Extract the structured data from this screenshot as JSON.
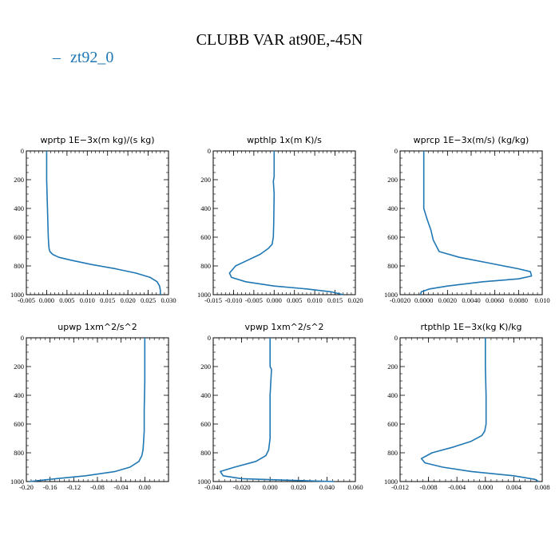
{
  "header": {
    "title": "CLUBB VAR at90E,-45N"
  },
  "legend": {
    "label": "zt92_0",
    "marker": "–",
    "color": "#1f77b4"
  },
  "chart_data": [
    {
      "type": "line",
      "title": "wprtp  1E−3x(m kg)/(s kg)",
      "xlim": [
        -0.005,
        0.03
      ],
      "ylim": [
        1000,
        0
      ],
      "xticks": [
        -0.005,
        0.0,
        0.005,
        0.01,
        0.015,
        0.02,
        0.025,
        0.03
      ],
      "xtick_labels": [
        "-0.005",
        "0.000",
        "0.005",
        "0.010",
        "0.015",
        "0.020",
        "0.025",
        "0.030"
      ],
      "yticks": [
        0,
        200,
        400,
        600,
        800,
        1000
      ],
      "ytick_labels": [
        "0",
        "200",
        "400",
        "600",
        "800",
        "1000"
      ],
      "series": [
        {
          "name": "zt92_0",
          "color": "#1f77b4",
          "x": [
            0.0,
            0.0,
            0.0002,
            0.0003,
            0.0004,
            0.0005,
            0.0006,
            0.0008,
            0.0015,
            0.003,
            0.006,
            0.011,
            0.017,
            0.022,
            0.0255,
            0.0272,
            0.0278,
            0.028,
            0.028
          ],
          "y": [
            0,
            200,
            400,
            500,
            600,
            650,
            680,
            700,
            720,
            740,
            760,
            790,
            820,
            850,
            880,
            910,
            940,
            970,
            1000
          ]
        }
      ]
    },
    {
      "type": "line",
      "title": "wpthlp  1x(m K)/s",
      "xlim": [
        -0.015,
        0.02
      ],
      "ylim": [
        1000,
        0
      ],
      "xticks": [
        -0.015,
        -0.01,
        -0.005,
        0.0,
        0.005,
        0.01,
        0.015,
        0.02
      ],
      "xtick_labels": [
        "-0.015",
        "-0.010",
        "-0.005",
        "0.000",
        "0.005",
        "0.010",
        "0.015",
        "0.020"
      ],
      "yticks": [
        0,
        200,
        400,
        600,
        800,
        1000
      ],
      "ytick_labels": [
        "0",
        "200",
        "400",
        "600",
        "800",
        "1000"
      ],
      "series": [
        {
          "name": "zt92_0",
          "color": "#1f77b4",
          "x": [
            0.0,
            0.0,
            -0.0002,
            0.0,
            -0.0001,
            -0.0002,
            -0.0005,
            -0.0015,
            -0.0035,
            -0.0065,
            -0.0095,
            -0.011,
            -0.0105,
            -0.007,
            0.0,
            0.008,
            0.014,
            0.017
          ],
          "y": [
            0,
            180,
            210,
            300,
            500,
            600,
            650,
            680,
            720,
            760,
            800,
            850,
            880,
            910,
            940,
            960,
            980,
            1000
          ]
        }
      ]
    },
    {
      "type": "line",
      "title": "wprcp  1E−3x(m/s) (kg/kg)",
      "xlim": [
        -0.002,
        0.01
      ],
      "ylim": [
        1000,
        0
      ],
      "xticks": [
        -0.002,
        0.0,
        0.002,
        0.004,
        0.006,
        0.008,
        0.01
      ],
      "xtick_labels": [
        "-0.0020",
        "0.0000",
        "0.0020",
        "0.0040",
        "0.0060",
        "0.0080",
        "0.010"
      ],
      "yticks": [
        0,
        200,
        400,
        600,
        800,
        1000
      ],
      "ytick_labels": [
        "0",
        "200",
        "400",
        "600",
        "800",
        "1000"
      ],
      "series": [
        {
          "name": "zt92_0",
          "color": "#1f77b4",
          "x": [
            0.0,
            0.0,
            0.0,
            0.0003,
            0.0006,
            0.0008,
            0.0013,
            0.003,
            0.0055,
            0.008,
            0.009,
            0.0091,
            0.008,
            0.005,
            0.002,
            0.0005,
            -0.0002,
            -0.0003
          ],
          "y": [
            0,
            200,
            400,
            480,
            550,
            620,
            700,
            740,
            780,
            820,
            840,
            870,
            890,
            910,
            940,
            960,
            980,
            1000
          ]
        }
      ]
    },
    {
      "type": "line",
      "title": "upwp  1xm^2/s^2",
      "xlim": [
        -0.2,
        0.04
      ],
      "ylim": [
        1000,
        0
      ],
      "xticks": [
        -0.2,
        -0.16,
        -0.12,
        -0.08,
        -0.04,
        0.0
      ],
      "xtick_labels": [
        "-0.20",
        "-0.16",
        "-0.12",
        "-0.08",
        "-0.04",
        "0.00"
      ],
      "yticks": [
        0,
        200,
        400,
        600,
        800,
        1000
      ],
      "ytick_labels": [
        "0",
        "200",
        "400",
        "600",
        "800",
        "1000"
      ],
      "series": [
        {
          "name": "zt92_0",
          "color": "#1f77b4",
          "x": [
            0.0,
            0.0,
            -0.001,
            -0.001,
            -0.002,
            -0.003,
            -0.005,
            -0.01,
            -0.025,
            -0.05,
            -0.1,
            -0.15,
            -0.195
          ],
          "y": [
            0,
            300,
            500,
            650,
            720,
            780,
            820,
            860,
            900,
            930,
            960,
            980,
            1000
          ]
        }
      ]
    },
    {
      "type": "line",
      "title": "vpwp  1xm^2/s^2",
      "xlim": [
        -0.04,
        0.06
      ],
      "ylim": [
        1000,
        0
      ],
      "xticks": [
        -0.04,
        -0.02,
        0.0,
        0.02,
        0.04,
        0.06
      ],
      "xtick_labels": [
        "-0.040",
        "-0.020",
        "0.000",
        "0.020",
        "0.040",
        "0.060"
      ],
      "yticks": [
        0,
        200,
        400,
        600,
        800,
        1000
      ],
      "ytick_labels": [
        "0",
        "200",
        "400",
        "600",
        "800",
        "1000"
      ],
      "series": [
        {
          "name": "zt92_0",
          "color": "#1f77b4",
          "x": [
            0.0,
            0.0,
            0.001,
            0.0,
            0.0,
            -0.001,
            -0.003,
            -0.01,
            -0.025,
            -0.035,
            -0.033,
            -0.02,
            0.01,
            0.045
          ],
          "y": [
            0,
            200,
            220,
            400,
            700,
            780,
            820,
            860,
            900,
            930,
            960,
            980,
            990,
            1000
          ]
        }
      ]
    },
    {
      "type": "line",
      "title": "rtpthlp  1E−3x(kg K)/kg",
      "xlim": [
        -0.012,
        0.008
      ],
      "ylim": [
        1000,
        0
      ],
      "xticks": [
        -0.012,
        -0.008,
        -0.004,
        0.0,
        0.004,
        0.008
      ],
      "xtick_labels": [
        "-0.012",
        "-0.008",
        "-0.004",
        "0.000",
        "0.004",
        "0.008"
      ],
      "yticks": [
        0,
        200,
        400,
        600,
        800,
        1000
      ],
      "ytick_labels": [
        "0",
        "200",
        "400",
        "600",
        "800",
        "1000"
      ],
      "series": [
        {
          "name": "zt92_0",
          "color": "#1f77b4",
          "x": [
            0.0,
            0.0,
            0.0001,
            0.0001,
            -0.0001,
            -0.0005,
            -0.002,
            -0.0045,
            -0.0075,
            -0.009,
            -0.0085,
            -0.006,
            -0.002,
            0.004,
            0.007,
            0.0075
          ],
          "y": [
            0,
            200,
            400,
            600,
            650,
            680,
            720,
            760,
            800,
            840,
            870,
            900,
            930,
            960,
            985,
            1000
          ]
        }
      ]
    }
  ]
}
